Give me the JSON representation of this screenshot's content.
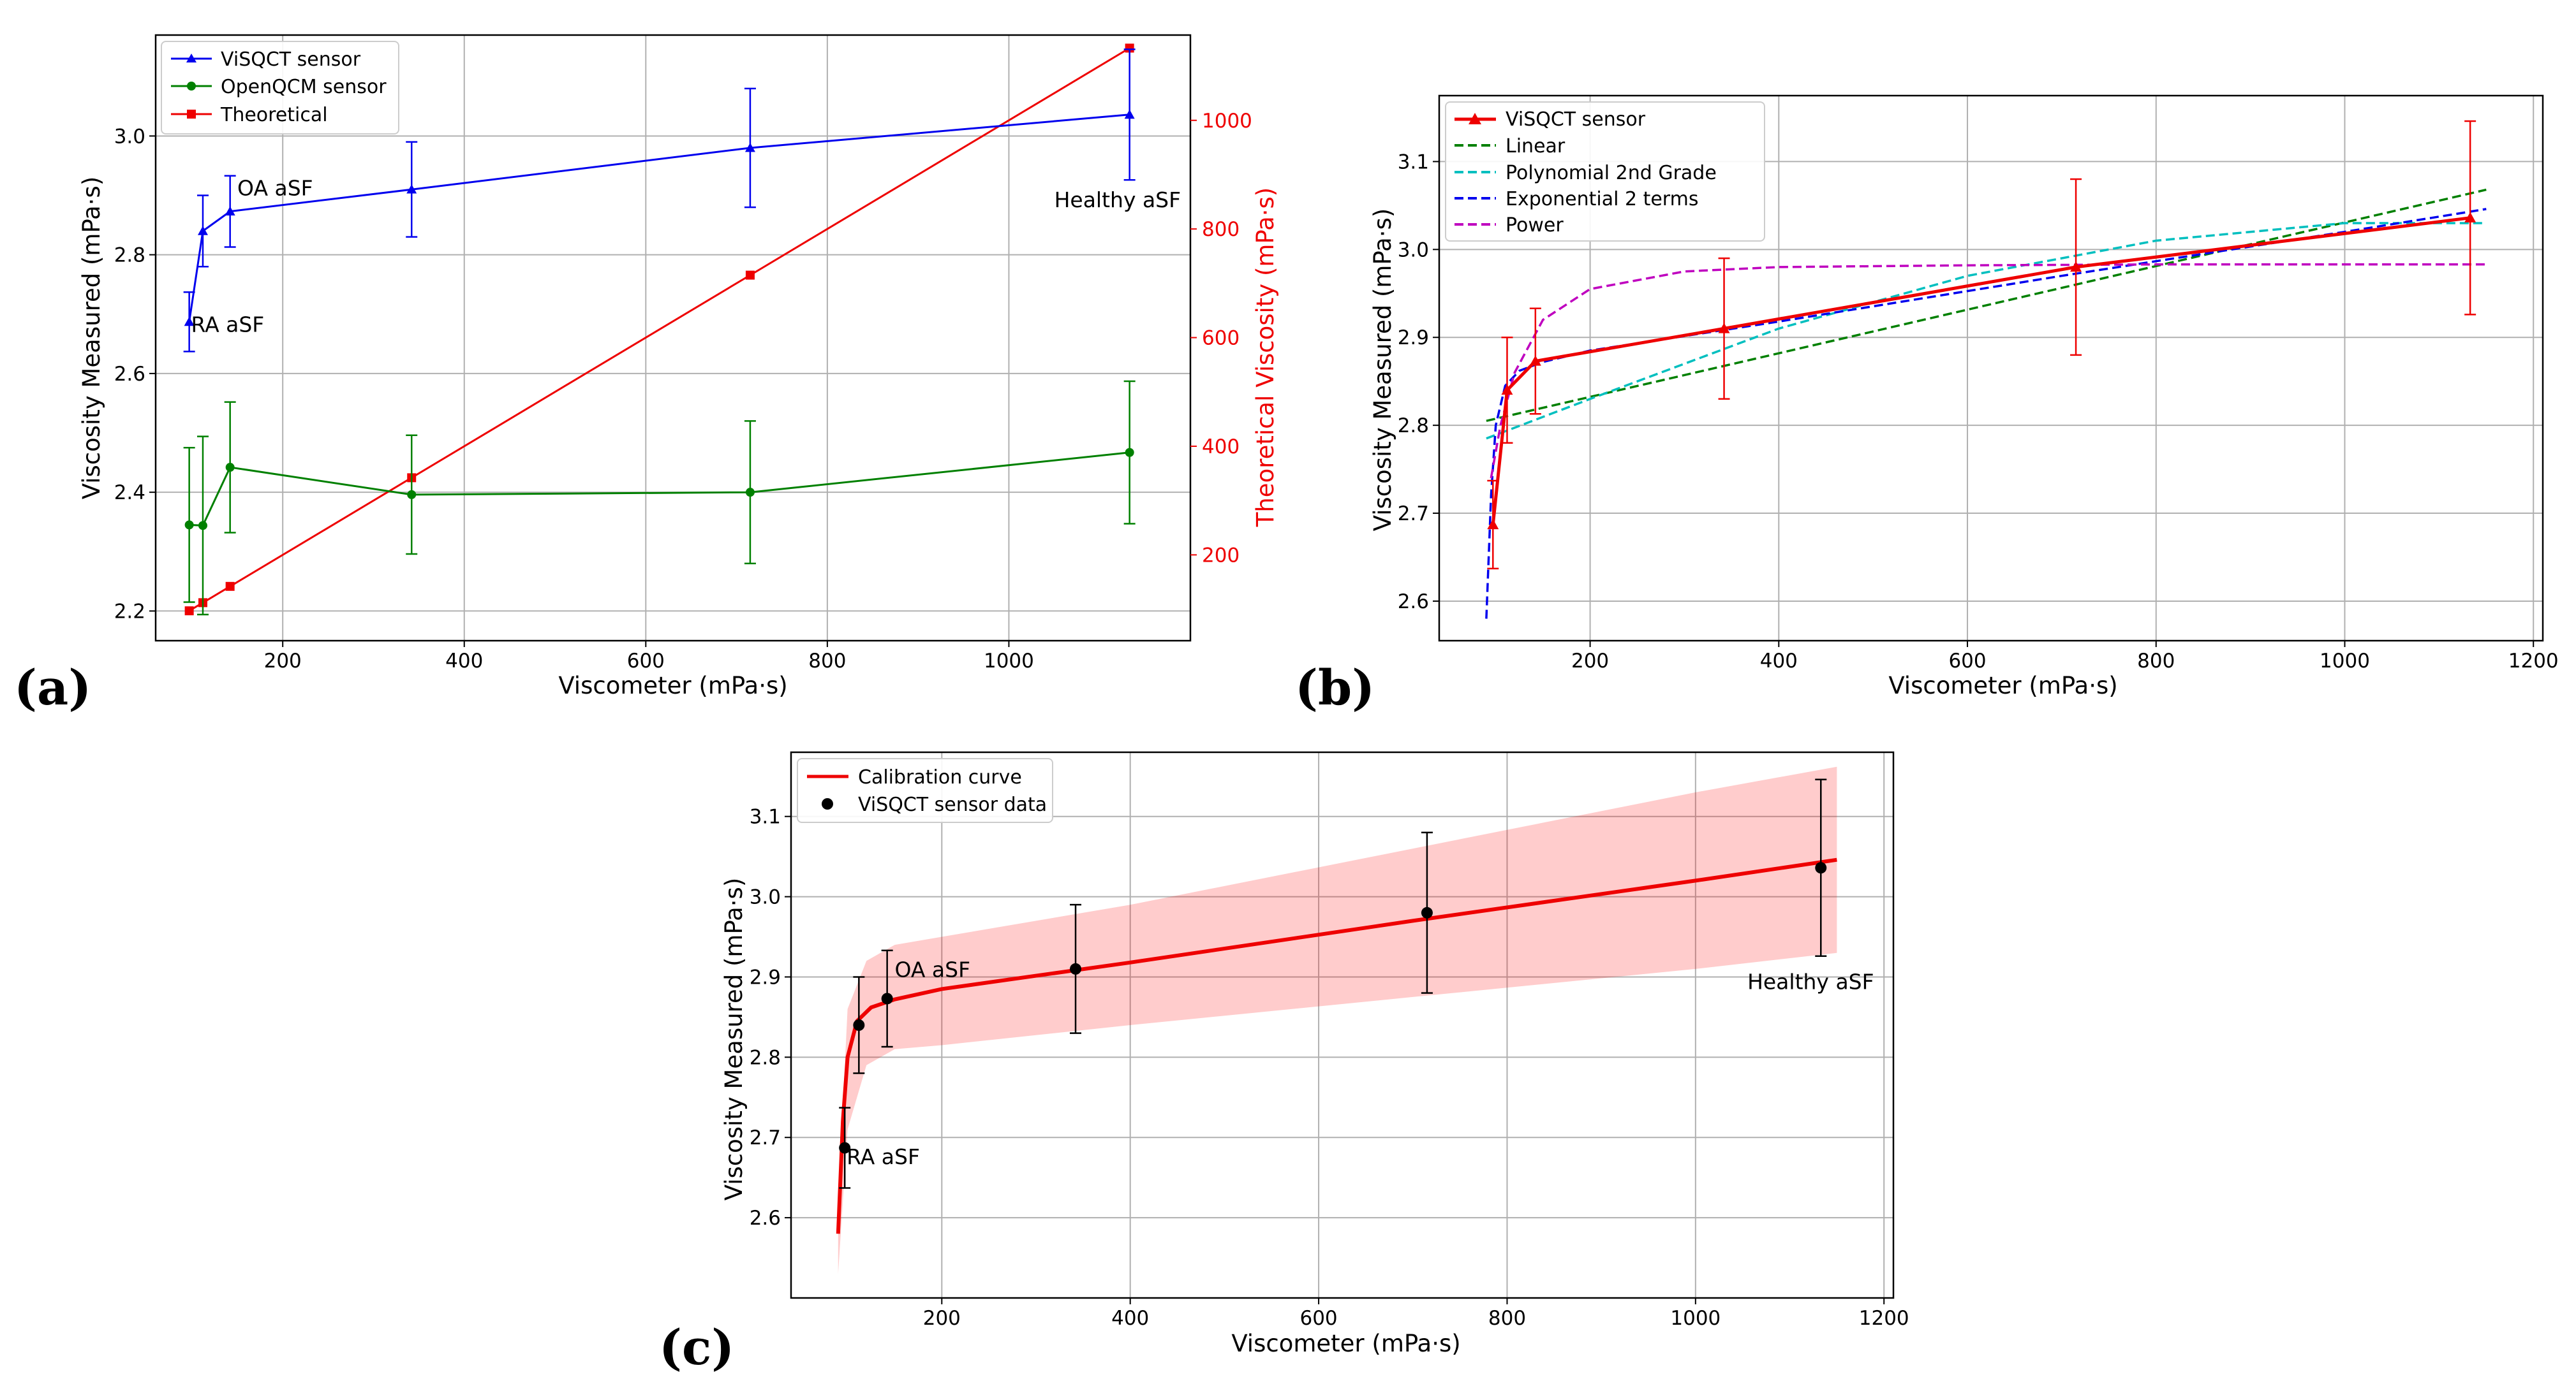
{
  "chart_data": [
    {
      "panel": "(a)",
      "type": "line",
      "xlabel": "Viscometer (mPa·s)",
      "ylabel": "Viscosity Measured (mPa·s)",
      "ylabel_right": "Theoretical Viscosity (mPa·s)",
      "xlim": [
        60,
        1200
      ],
      "ylim": [
        2.15,
        3.17
      ],
      "ylim_right": [
        42,
        1157
      ],
      "xticks": [
        200,
        400,
        600,
        800,
        1000
      ],
      "yticks": [
        2.2,
        2.4,
        2.6,
        2.8,
        3.0
      ],
      "yticks_right": [
        200,
        400,
        600,
        800,
        1000
      ],
      "grid": true,
      "legend": "top-left",
      "x": [
        97,
        112,
        142,
        342,
        715,
        1133
      ],
      "series": [
        {
          "name": "ViSQCT sensor",
          "color": "#0000ee",
          "marker": "triangle",
          "axis": "left",
          "values": [
            2.687,
            2.84,
            2.873,
            2.91,
            2.98,
            3.036
          ],
          "errors": [
            0.05,
            0.06,
            0.06,
            0.08,
            0.1,
            0.11
          ]
        },
        {
          "name": "OpenQCM sensor",
          "color": "#008000",
          "marker": "circle",
          "axis": "left",
          "values": [
            2.345,
            2.344,
            2.442,
            2.396,
            2.4,
            2.467
          ],
          "errors": [
            0.13,
            0.15,
            0.11,
            0.1,
            0.12,
            0.12
          ]
        },
        {
          "name": "Theoretical",
          "color": "#ee0000",
          "marker": "square",
          "axis": "right",
          "values": [
            97,
            112,
            142,
            342,
            715,
            1133
          ]
        }
      ],
      "annotations": [
        {
          "text": "RA aSF",
          "x": 99,
          "y": 2.67
        },
        {
          "text": "OA aSF",
          "x": 150,
          "y": 2.9
        },
        {
          "text": "Healthy aSF",
          "x": 1050,
          "y": 2.88
        }
      ]
    },
    {
      "panel": "(b)",
      "type": "line",
      "xlabel": "Viscometer (mPa·s)",
      "ylabel": "Viscosity Measured (mPa·s)",
      "xlim": [
        40,
        1210
      ],
      "ylim": [
        2.555,
        3.175
      ],
      "xticks": [
        200,
        400,
        600,
        800,
        1000,
        1200
      ],
      "yticks": [
        2.6,
        2.7,
        2.8,
        2.9,
        3.0,
        3.1
      ],
      "grid": true,
      "legend": "top-left",
      "sensor": {
        "name": "ViSQCT sensor",
        "color": "#ee0000",
        "x": [
          97,
          112,
          142,
          342,
          715,
          1133
        ],
        "values": [
          2.687,
          2.84,
          2.873,
          2.91,
          2.98,
          3.036
        ],
        "errors": [
          0.05,
          0.06,
          0.06,
          0.08,
          0.1,
          0.11
        ]
      },
      "fits": [
        {
          "name": "Linear",
          "color": "#008000",
          "x": [
            90,
            1150
          ],
          "values": [
            2.805,
            3.068
          ]
        },
        {
          "name": "Polynomial 2nd Grade",
          "color": "#00bfbf",
          "x": [
            90,
            200,
            400,
            600,
            800,
            1000,
            1150
          ],
          "values": [
            2.785,
            2.83,
            2.91,
            2.97,
            3.01,
            3.03,
            3.03
          ]
        },
        {
          "name": "Exponential 2 terms",
          "color": "#0000ee",
          "x": [
            90,
            95,
            100,
            110,
            125,
            150,
            200,
            400,
            700,
            1000,
            1150
          ],
          "values": [
            2.58,
            2.72,
            2.8,
            2.845,
            2.862,
            2.872,
            2.885,
            2.918,
            2.97,
            3.02,
            3.046
          ]
        },
        {
          "name": "Power",
          "color": "#bf00bf",
          "x": [
            95,
            105,
            120,
            150,
            200,
            300,
            400,
            600,
            800,
            1150
          ],
          "values": [
            2.74,
            2.8,
            2.86,
            2.92,
            2.955,
            2.975,
            2.98,
            2.982,
            2.983,
            2.983
          ]
        }
      ]
    },
    {
      "panel": "(c)",
      "type": "line",
      "xlabel": "Viscometer (mPa·s)",
      "ylabel": "Viscosity Measured (mPa·s)",
      "xlim": [
        40,
        1210
      ],
      "ylim": [
        2.5,
        3.18
      ],
      "xticks": [
        200,
        400,
        600,
        800,
        1000,
        1200
      ],
      "yticks": [
        2.6,
        2.7,
        2.8,
        2.9,
        3.0,
        3.1
      ],
      "grid": true,
      "legend": "top-left",
      "curve": {
        "name": "Calibration curve",
        "color": "#ee0000",
        "x": [
          90,
          95,
          100,
          110,
          125,
          150,
          200,
          400,
          700,
          1000,
          1150
        ],
        "values": [
          2.58,
          2.72,
          2.8,
          2.845,
          2.862,
          2.872,
          2.885,
          2.918,
          2.97,
          3.02,
          3.046
        ]
      },
      "band": {
        "x": [
          90,
          100,
          120,
          150,
          200,
          400,
          700,
          1000,
          1150
        ],
        "upper": [
          2.62,
          2.86,
          2.92,
          2.94,
          2.95,
          2.99,
          3.06,
          3.13,
          3.162
        ],
        "lower": [
          2.53,
          2.71,
          2.79,
          2.81,
          2.815,
          2.84,
          2.875,
          2.91,
          2.93
        ]
      },
      "sensor": {
        "name": "ViSQCT sensor data",
        "color": "#000000",
        "x": [
          97,
          112,
          142,
          342,
          715,
          1133
        ],
        "values": [
          2.687,
          2.84,
          2.873,
          2.91,
          2.98,
          3.036
        ],
        "errors": [
          0.05,
          0.06,
          0.06,
          0.08,
          0.1,
          0.11
        ]
      },
      "annotations": [
        {
          "text": "RA aSF",
          "x": 99,
          "y": 2.667
        },
        {
          "text": "OA aSF",
          "x": 150,
          "y": 2.9
        },
        {
          "text": "Healthy aSF",
          "x": 1055,
          "y": 2.885
        }
      ]
    }
  ]
}
